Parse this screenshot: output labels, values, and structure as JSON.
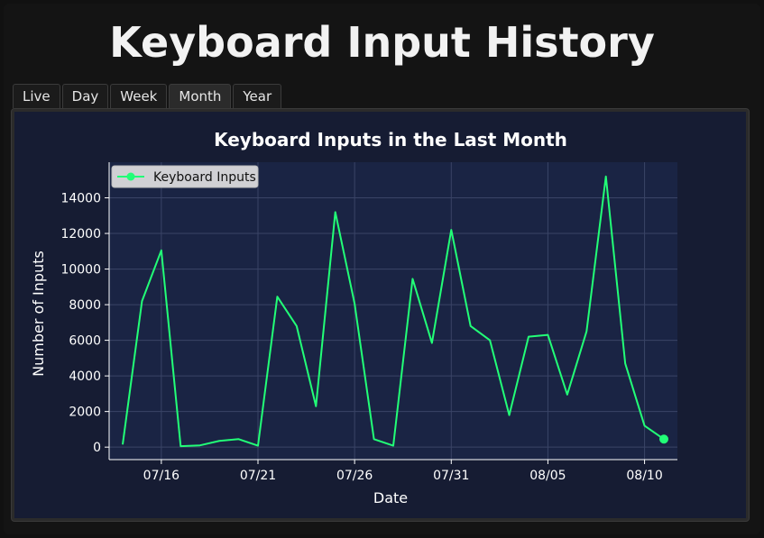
{
  "page": {
    "title": "Keyboard Input History"
  },
  "tabs": [
    {
      "label": "Live",
      "active": false
    },
    {
      "label": "Day",
      "active": false
    },
    {
      "label": "Week",
      "active": false
    },
    {
      "label": "Month",
      "active": true
    },
    {
      "label": "Year",
      "active": false
    }
  ],
  "colors": {
    "line": "#22ff77",
    "plot_background": "#1a2444",
    "figure_background": "#161c33",
    "grid": "#3a4466",
    "text": "#ffffff"
  },
  "chart_data": {
    "type": "line",
    "title": "Keyboard Inputs in the Last Month",
    "xlabel": "Date",
    "ylabel": "Number of Inputs",
    "x": [
      "07/14",
      "07/15",
      "07/16",
      "07/17",
      "07/18",
      "07/19",
      "07/20",
      "07/21",
      "07/22",
      "07/23",
      "07/24",
      "07/25",
      "07/26",
      "07/27",
      "07/28",
      "07/29",
      "07/30",
      "07/31",
      "08/01",
      "08/02",
      "08/03",
      "08/04",
      "08/05",
      "08/06",
      "08/07",
      "08/08",
      "08/09",
      "08/10",
      "08/11"
    ],
    "xticks": [
      "07/16",
      "07/21",
      "07/26",
      "07/31",
      "08/05",
      "08/10"
    ],
    "yticks": [
      0,
      2000,
      4000,
      6000,
      8000,
      10000,
      12000,
      14000
    ],
    "ylim": [
      -700,
      16000
    ],
    "grid": true,
    "legend": "top-left",
    "series": [
      {
        "name": "Keyboard Inputs",
        "values": [
          150,
          8200,
          11050,
          50,
          100,
          350,
          450,
          80,
          8450,
          6800,
          2300,
          13200,
          8050,
          450,
          80,
          9450,
          5850,
          12200,
          6800,
          6000,
          1800,
          6200,
          6300,
          2950,
          6500,
          15200,
          4700,
          1200,
          450
        ]
      }
    ]
  }
}
